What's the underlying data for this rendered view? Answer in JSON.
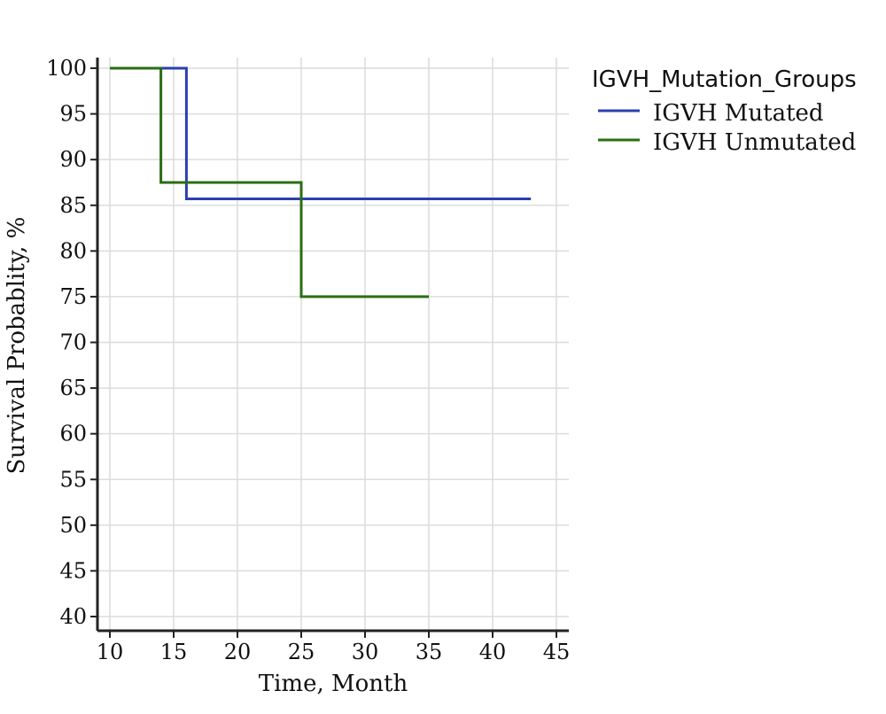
{
  "chart_data": {
    "type": "line",
    "step": true,
    "xlabel": "Time, Month",
    "ylabel": "Survival Probablity, %",
    "xlim": [
      10,
      45
    ],
    "ylim": [
      40,
      100
    ],
    "xticks": [
      10,
      15,
      20,
      25,
      30,
      35,
      40,
      45
    ],
    "yticks": [
      40,
      45,
      50,
      55,
      60,
      65,
      70,
      75,
      80,
      85,
      90,
      95,
      100
    ],
    "grid": true,
    "legend_position": "top-right outside",
    "legend_title": "IGVH_Mutation_Groups",
    "series": [
      {
        "name": "IGVH Mutated",
        "color": "#2b3fb0",
        "x": [
          10,
          16,
          43
        ],
        "y": [
          100,
          85.7,
          85.7
        ]
      },
      {
        "name": "IGVH Unmutated",
        "color": "#2a6e12",
        "x": [
          10,
          14,
          25,
          35
        ],
        "y": [
          100,
          87.5,
          75,
          75
        ]
      }
    ]
  }
}
